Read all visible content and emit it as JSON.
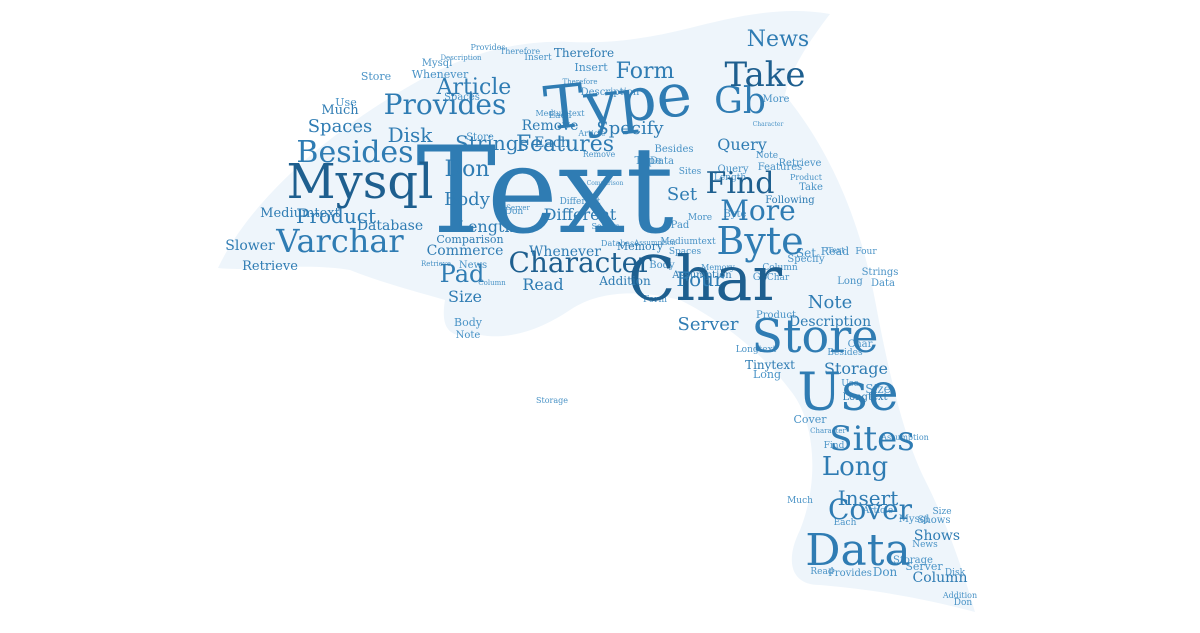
{
  "cloud": {
    "shape": "dolphin",
    "colors": {
      "background": "#ffffff",
      "silhouette": "#eef5fb",
      "primary": "#2f7cb3",
      "dark": "#1e5f8f",
      "light": "#4a93c6"
    },
    "words": [
      {
        "text": "Text",
        "weight": 100
      },
      {
        "text": "Char",
        "weight": 70
      },
      {
        "text": "Type",
        "weight": 62
      },
      {
        "text": "Data",
        "weight": 52
      },
      {
        "text": "Use",
        "weight": 52
      },
      {
        "text": "Mysql",
        "weight": 50
      },
      {
        "text": "Store",
        "weight": 46
      },
      {
        "text": "Sites",
        "weight": 40
      },
      {
        "text": "Byte",
        "weight": 38
      },
      {
        "text": "Gb",
        "weight": 38
      },
      {
        "text": "Take",
        "weight": 36
      },
      {
        "text": "Varchar",
        "weight": 34
      },
      {
        "text": "Besides",
        "weight": 34
      },
      {
        "text": "Provides",
        "weight": 32
      },
      {
        "text": "Character",
        "weight": 30
      },
      {
        "text": "Cover",
        "weight": 30
      },
      {
        "text": "Long",
        "weight": 30
      },
      {
        "text": "Find",
        "weight": 30
      },
      {
        "text": "More",
        "weight": 30
      },
      {
        "text": "News",
        "weight": 26
      },
      {
        "text": "Form",
        "weight": 26
      },
      {
        "text": "Article",
        "weight": 26
      },
      {
        "text": "Features",
        "weight": 26
      },
      {
        "text": "Strings",
        "weight": 24
      },
      {
        "text": "Don",
        "weight": 26
      },
      {
        "text": "Disk",
        "weight": 24
      },
      {
        "text": "Product",
        "weight": 24
      },
      {
        "text": "Pad",
        "weight": 26
      },
      {
        "text": "Four",
        "weight": 24
      },
      {
        "text": "Insert",
        "weight": 24
      },
      {
        "text": "Server",
        "weight": 22
      },
      {
        "text": "Body",
        "weight": 22
      },
      {
        "text": "Set",
        "weight": 22
      },
      {
        "text": "Spaces",
        "weight": 22
      },
      {
        "text": "Specify",
        "weight": 20
      },
      {
        "text": "Query",
        "weight": 20
      },
      {
        "text": "Read",
        "weight": 20
      },
      {
        "text": "Size",
        "weight": 20
      },
      {
        "text": "Length",
        "weight": 20
      },
      {
        "text": "Different",
        "weight": 20
      },
      {
        "text": "Note",
        "weight": 20
      },
      {
        "text": "Storage",
        "weight": 18
      },
      {
        "text": "Description",
        "weight": 16
      },
      {
        "text": "Shows",
        "weight": 18
      },
      {
        "text": "Column",
        "weight": 16
      },
      {
        "text": "Each",
        "weight": 18
      },
      {
        "text": "Remove",
        "weight": 16
      },
      {
        "text": "Commerce",
        "weight": 16
      },
      {
        "text": "Database",
        "weight": 16
      },
      {
        "text": "Whenever",
        "weight": 16
      },
      {
        "text": "Mediumtext",
        "weight": 14
      },
      {
        "text": "Slower",
        "weight": 16
      },
      {
        "text": "Retrieve",
        "weight": 14
      },
      {
        "text": "Tinytext",
        "weight": 14
      },
      {
        "text": "Longtext",
        "weight": 12
      },
      {
        "text": "Memory",
        "weight": 12
      },
      {
        "text": "Addition",
        "weight": 14
      },
      {
        "text": "Comparison",
        "weight": 12
      },
      {
        "text": "Therefore",
        "weight": 14
      },
      {
        "text": "Much",
        "weight": 14
      },
      {
        "text": "Assumption",
        "weight": 10
      },
      {
        "text": "Following",
        "weight": 10
      }
    ]
  }
}
